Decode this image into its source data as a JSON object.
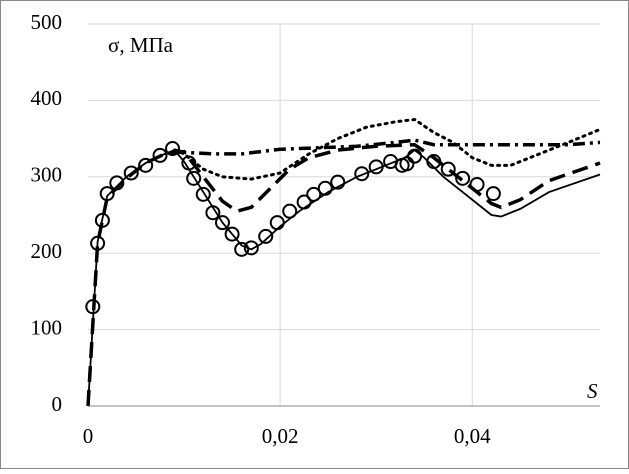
{
  "chart_data": {
    "type": "line",
    "y_label": "σ, МПа",
    "x_label": "S",
    "xlim": [
      0,
      0.0533
    ],
    "ylim": [
      0,
      500
    ],
    "xticks": [
      0,
      {
        "value": 0.02,
        "label": "0,02"
      },
      {
        "value": 0.04,
        "label": "0,04"
      }
    ],
    "yticks": [
      0,
      100,
      200,
      300,
      400,
      500
    ],
    "grid": true,
    "series": [
      {
        "color": "#000000",
        "style": "solid",
        "x": [
          0,
          0.001,
          0.002,
          0.004,
          0.006,
          0.008,
          0.009,
          0.01,
          0.012,
          0.014,
          0.016,
          0.017,
          0.018,
          0.02,
          0.022,
          0.025,
          0.028,
          0.031,
          0.033,
          0.034,
          0.035,
          0.037,
          0.039,
          0.041,
          0.042,
          0.043,
          0.045,
          0.048,
          0.0533
        ],
        "values": [
          0,
          215,
          275,
          300,
          318,
          330,
          335,
          320,
          280,
          240,
          210,
          205,
          212,
          235,
          255,
          280,
          300,
          315,
          325,
          335,
          325,
          300,
          280,
          260,
          250,
          248,
          258,
          280,
          303
        ]
      },
      {
        "color": "#000000",
        "style": "circles",
        "x": [
          0.0005,
          0.001,
          0.0015,
          0.002,
          0.003,
          0.0045,
          0.006,
          0.0075,
          0.0088,
          0.0105,
          0.011,
          0.012,
          0.013,
          0.014,
          0.015,
          0.016,
          0.017,
          0.0185,
          0.0197,
          0.021,
          0.0225,
          0.0235,
          0.0247,
          0.026,
          0.0285,
          0.03,
          0.0315,
          0.0327,
          0.0332,
          0.034,
          0.036,
          0.0375,
          0.039,
          0.0405,
          0.0422
        ],
        "values": [
          130,
          213,
          243,
          278,
          292,
          305,
          315,
          328,
          337,
          318,
          298,
          277,
          253,
          240,
          225,
          205,
          207,
          222,
          240,
          255,
          267,
          277,
          285,
          293,
          304,
          313,
          320,
          315,
          317,
          327,
          320,
          310,
          298,
          290,
          278
        ]
      },
      {
        "color": "#000000",
        "style": "dashed",
        "x": [
          0,
          0.001,
          0.002,
          0.004,
          0.006,
          0.008,
          0.01,
          0.012,
          0.014,
          0.0155,
          0.017,
          0.019,
          0.021,
          0.023,
          0.026,
          0.03,
          0.034,
          0.036,
          0.038,
          0.04,
          0.042,
          0.043,
          0.045,
          0.048,
          0.0533
        ],
        "values": [
          0,
          213,
          273,
          298,
          318,
          330,
          333,
          300,
          268,
          255,
          260,
          285,
          310,
          325,
          335,
          340,
          342,
          325,
          305,
          285,
          265,
          260,
          270,
          295,
          318
        ]
      },
      {
        "color": "#000000",
        "style": "dotted",
        "x": [
          0.009,
          0.01,
          0.012,
          0.014,
          0.017,
          0.02,
          0.023,
          0.026,
          0.029,
          0.032,
          0.034,
          0.036,
          0.038,
          0.04,
          0.042,
          0.044,
          0.047,
          0.05,
          0.0533
        ],
        "values": [
          335,
          330,
          310,
          300,
          297,
          305,
          330,
          350,
          365,
          372,
          375,
          358,
          345,
          325,
          315,
          315,
          330,
          345,
          362
        ]
      },
      {
        "color": "#000000",
        "style": "dashdot",
        "x": [
          0.009,
          0.01,
          0.013,
          0.016,
          0.02,
          0.024,
          0.028,
          0.032,
          0.034,
          0.036,
          0.04,
          0.045,
          0.05,
          0.0533
        ],
        "values": [
          335,
          332,
          330,
          330,
          336,
          338,
          340,
          345,
          348,
          342,
          342,
          342,
          342,
          345
        ]
      }
    ]
  }
}
